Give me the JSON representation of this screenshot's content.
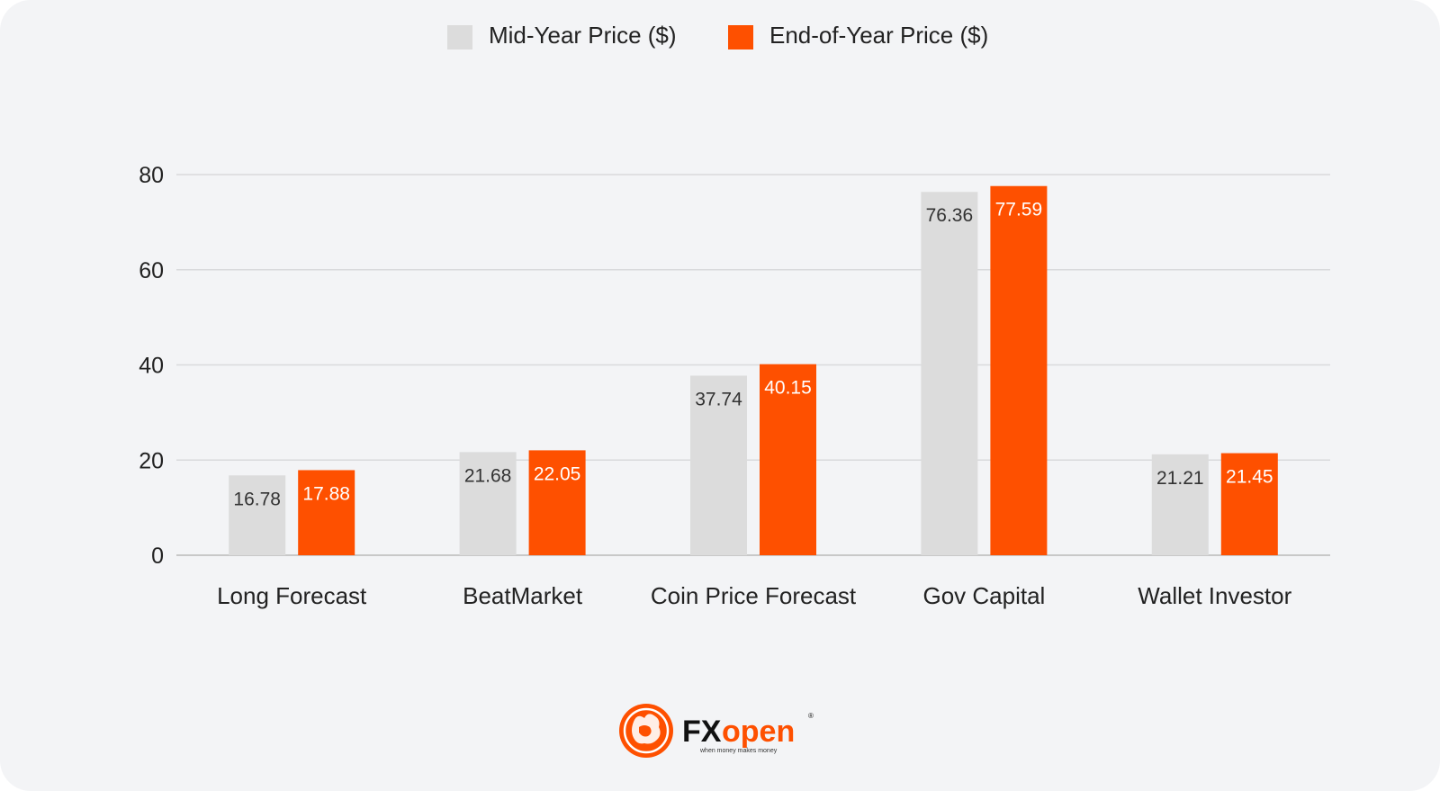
{
  "legend": {
    "mid_label": "Mid-Year Price ($)",
    "end_label": "End-of-Year Price ($)"
  },
  "colors": {
    "background": "#f3f4f6",
    "mid": "#dcdcdc",
    "end": "#fe5000",
    "grid": "#d9dadc",
    "axis": "#c8c8c8",
    "text": "#222222"
  },
  "logo": {
    "wordmark_fx": "FX",
    "wordmark_open": "open",
    "tagline": "when money makes money",
    "icon": "bull-icon"
  },
  "chart_data": {
    "type": "bar",
    "categories": [
      "Long Forecast",
      "BeatMarket",
      "Coin Price Forecast",
      "Gov Capital",
      "Wallet Investor"
    ],
    "series": [
      {
        "name": "Mid-Year Price ($)",
        "values": [
          16.78,
          21.68,
          37.74,
          76.36,
          21.21
        ],
        "labels": [
          "16.78",
          "21.68",
          "37.74",
          "76.36",
          "21.21"
        ]
      },
      {
        "name": "End-of-Year Price ($)",
        "values": [
          17.88,
          22.05,
          40.15,
          77.59,
          21.45
        ],
        "labels": [
          "17.88",
          "22.05",
          "40.15",
          "77.59",
          "21.45"
        ]
      }
    ],
    "ylim": [
      0,
      80
    ],
    "yticks": [
      0,
      20,
      40,
      60,
      80
    ],
    "ytick_labels": [
      "0",
      "20",
      "40",
      "60",
      "80"
    ],
    "grid": true,
    "legend_position": "top-center",
    "title": "",
    "xlabel": "",
    "ylabel": ""
  }
}
